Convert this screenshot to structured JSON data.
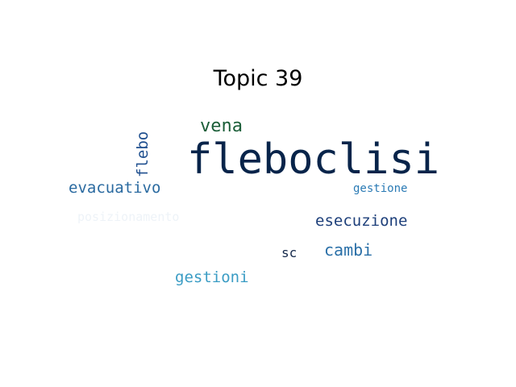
{
  "title": "Topic 39",
  "words": [
    {
      "text": "fleboclisi",
      "weight": 1.0,
      "color": "#08244a",
      "orientation": "horizontal"
    },
    {
      "text": "vena",
      "weight": 0.42,
      "color": "#1b5e38",
      "orientation": "horizontal"
    },
    {
      "text": "flebo",
      "weight": 0.36,
      "color": "#1f4f8f",
      "orientation": "vertical"
    },
    {
      "text": "evacuativo",
      "weight": 0.36,
      "color": "#2a6aa0",
      "orientation": "horizontal"
    },
    {
      "text": "gestione",
      "weight": 0.26,
      "color": "#2b7bb5",
      "orientation": "horizontal"
    },
    {
      "text": "posizionamento",
      "weight": 0.28,
      "color": "#eef3f8",
      "orientation": "horizontal"
    },
    {
      "text": "esecuzione",
      "weight": 0.37,
      "color": "#1d3f7a",
      "orientation": "horizontal"
    },
    {
      "text": "cambi",
      "weight": 0.38,
      "color": "#2b70a8",
      "orientation": "horizontal"
    },
    {
      "text": "sc",
      "weight": 0.3,
      "color": "#14284a",
      "orientation": "horizontal"
    },
    {
      "text": "gestioni",
      "weight": 0.37,
      "color": "#3a9cc4",
      "orientation": "horizontal"
    }
  ]
}
